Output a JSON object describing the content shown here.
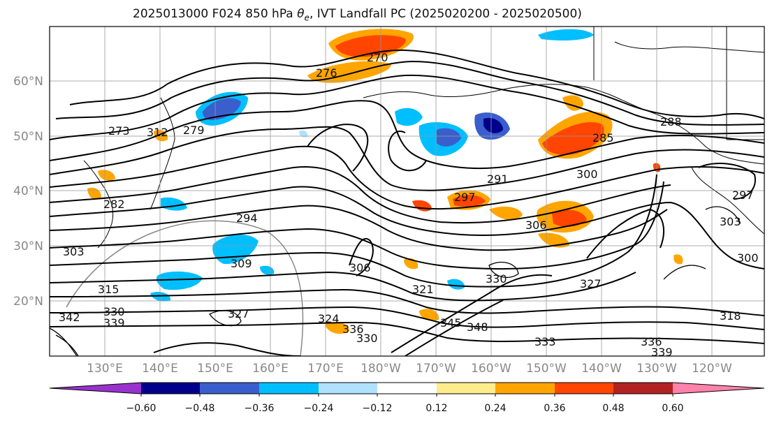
{
  "title": {
    "prefix": "2025013000 F024 850 hPa ",
    "theta": "θ",
    "theta_sub": "e",
    "suffix": ", IVT Landfall PC (2025020200 - 2025020500)"
  },
  "map": {
    "lat_labels": [
      "60°N",
      "50°N",
      "40°N",
      "30°N",
      "20°N"
    ],
    "lon_labels": [
      "130°E",
      "140°E",
      "150°E",
      "160°E",
      "170°E",
      "180°W",
      "170°W",
      "160°W",
      "150°W",
      "140°W",
      "130°W",
      "120°W"
    ],
    "contour_labels": [
      "273",
      "279",
      "282",
      "276",
      "270",
      "294",
      "291",
      "297",
      "300",
      "306",
      "285",
      "288",
      "297",
      "303",
      "309",
      "315",
      "330",
      "339",
      "342",
      "327",
      "336",
      "324",
      "321",
      "330",
      "333",
      "336",
      "339",
      "303",
      "306",
      "300",
      "327",
      "318",
      "330",
      "345",
      "348",
      "312"
    ]
  },
  "colorbar": {
    "ticks": [
      "−0.60",
      "−0.48",
      "−0.36",
      "−0.24",
      "−0.12",
      "0.12",
      "0.24",
      "0.36",
      "0.48",
      "0.60"
    ],
    "colors": [
      "#9932cc",
      "#00008b",
      "#3a5fcd",
      "#00bfff",
      "#b0e2ff",
      "#ffffff",
      "#ffec8b",
      "#ffa500",
      "#ff4500",
      "#b22222",
      "#ff82ab"
    ]
  }
}
